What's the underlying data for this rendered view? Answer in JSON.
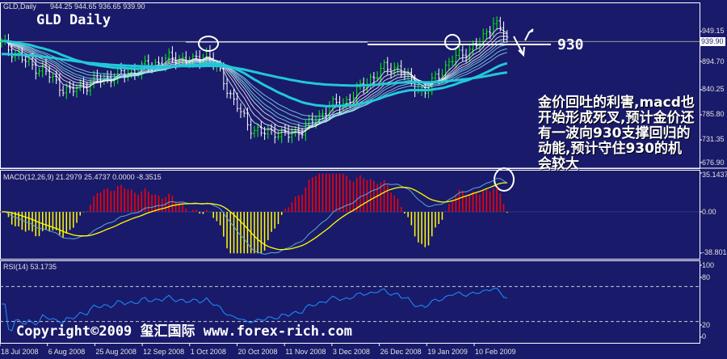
{
  "header": {
    "symbol_info": "GLD,Daily",
    "ohlc": "944.25 944.65 936.65 939.90",
    "big_title": "GLD Daily"
  },
  "annotations": {
    "level_label": "930",
    "note": "金价回吐的利害,macd也开始形成死叉,预计金价还有一波向930支撑回归的动能,预计守住930的机会较大",
    "copyright": "Copyright©2009 玺汇国际 www.forex-rich.com"
  },
  "colors": {
    "background": "#1a1a6b",
    "bull": "#00ff00",
    "bear": "#ffffff",
    "ma_thick": "#22c8d8",
    "macd_pos": "#ff0000",
    "macd_neg": "#ffff00",
    "signal": "#ffff00",
    "rsi": "#1e90ff"
  },
  "chart_data": [
    {
      "type": "candlestick",
      "title": "GLD Daily",
      "last_price": "939.90",
      "y_ticks": [
        "949.15",
        "894.70",
        "840.25",
        "785.80",
        "731.35",
        "676.90"
      ],
      "ylim": [
        676.9,
        1003
      ],
      "x_ticks": [
        "18 Jul 2008",
        "6 Aug 2008",
        "25 Aug 2008",
        "12 Sep 2008",
        "1 Oct 2008",
        "20 Oct 2008",
        "11 Nov 2008",
        "3 Dec 2008",
        "26 Dec 2008",
        "19 Jan 2009",
        "10 Feb 2009"
      ],
      "closes_every_4_bars": [
        935,
        915,
        890,
        880,
        850,
        830,
        845,
        855,
        865,
        870,
        880,
        890,
        900,
        905,
        895,
        915,
        870,
        810,
        760,
        740,
        745,
        735,
        750,
        770,
        800,
        805,
        830,
        860,
        880,
        885,
        850,
        830,
        870,
        900,
        920,
        935,
        985,
        945
      ],
      "support_level": 930
    },
    {
      "type": "bar",
      "title": "MACD(12,26,9) 21.2979 25.4737 0.0000 -8.3515",
      "y_ticks": [
        "35.1437",
        "0.00",
        "-38.8013"
      ],
      "ylim": [
        -38.8013,
        35.1437
      ]
    },
    {
      "type": "line",
      "title": "RSI(14) 53.1735",
      "y_ticks": [
        "100",
        "80",
        "20",
        "0"
      ],
      "ylim": [
        0,
        100
      ],
      "levels": [
        80,
        20
      ]
    }
  ]
}
